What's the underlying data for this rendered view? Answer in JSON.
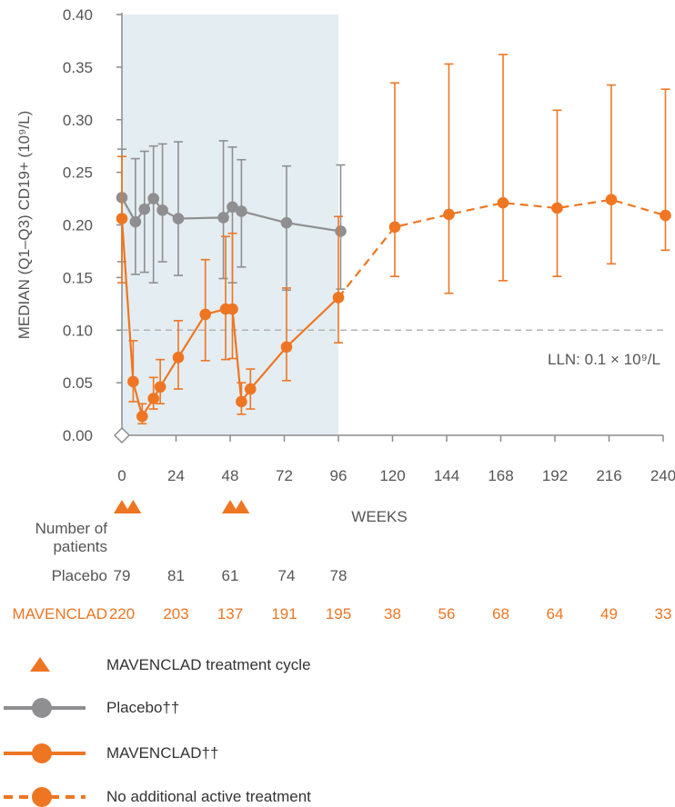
{
  "colors": {
    "mavenclad": "#ee7623",
    "placebo": "#8f8f92",
    "shade": "#e4edf1",
    "axis": "#8c8c8c",
    "lln": "#b4b4b4",
    "text": "#555555"
  },
  "chart_data": {
    "type": "line",
    "ylabel": "MEDIAN (Q1–Q3) CD19+ (10⁹/L)",
    "xlabel": "WEEKS",
    "xlim": [
      0,
      240
    ],
    "ylim": [
      0,
      0.4
    ],
    "x_ticks": [
      0,
      24,
      48,
      72,
      96,
      120,
      144,
      168,
      192,
      216,
      240
    ],
    "y_ticks": [
      "0.00",
      "0.05",
      "0.10",
      "0.15",
      "0.20",
      "0.25",
      "0.30",
      "0.35",
      "0.40"
    ],
    "shaded_region_x": [
      0,
      96
    ],
    "reference_line": {
      "y": 0.1,
      "label": "LLN: 0.1 × 10⁹/L"
    },
    "treatment_cycle_weeks": [
      0,
      5,
      48,
      53
    ],
    "series": [
      {
        "name": "Placebo††",
        "style": "solid",
        "points": [
          {
            "x": 0,
            "y": 0.226,
            "q1": 0.165,
            "q3": 0.272
          },
          {
            "x": 6,
            "y": 0.203,
            "q1": 0.153,
            "q3": 0.263
          },
          {
            "x": 10,
            "y": 0.215,
            "q1": 0.155,
            "q3": 0.27
          },
          {
            "x": 14,
            "y": 0.225,
            "q1": 0.145,
            "q3": 0.275
          },
          {
            "x": 18,
            "y": 0.214,
            "q1": 0.165,
            "q3": 0.277
          },
          {
            "x": 25,
            "y": 0.206,
            "q1": 0.152,
            "q3": 0.279
          },
          {
            "x": 45,
            "y": 0.207,
            "q1": 0.149,
            "q3": 0.28
          },
          {
            "x": 49,
            "y": 0.217,
            "q1": 0.145,
            "q3": 0.274
          },
          {
            "x": 53,
            "y": 0.213,
            "q1": 0.16,
            "q3": 0.262
          },
          {
            "x": 73,
            "y": 0.202,
            "q1": 0.138,
            "q3": 0.256
          },
          {
            "x": 97,
            "y": 0.194,
            "q1": 0.139,
            "q3": 0.257
          }
        ]
      },
      {
        "name": "MAVENCLAD††",
        "style": "solid",
        "points": [
          {
            "x": 0,
            "y": 0.206,
            "q1": 0.145,
            "q3": 0.265
          },
          {
            "x": 5,
            "y": 0.051,
            "q1": 0.032,
            "q3": 0.09
          },
          {
            "x": 9,
            "y": 0.018,
            "q1": 0.011,
            "q3": 0.03
          },
          {
            "x": 14,
            "y": 0.035,
            "q1": 0.025,
            "q3": 0.055
          },
          {
            "x": 17,
            "y": 0.046,
            "q1": 0.03,
            "q3": 0.072
          },
          {
            "x": 25,
            "y": 0.074,
            "q1": 0.044,
            "q3": 0.109
          },
          {
            "x": 37,
            "y": 0.115,
            "q1": 0.071,
            "q3": 0.167
          },
          {
            "x": 46,
            "y": 0.12,
            "q1": 0.072,
            "q3": 0.189
          },
          {
            "x": 49,
            "y": 0.12,
            "q1": 0.073,
            "q3": 0.192
          },
          {
            "x": 53,
            "y": 0.032,
            "q1": 0.02,
            "q3": 0.05
          },
          {
            "x": 57,
            "y": 0.044,
            "q1": 0.025,
            "q3": 0.063
          },
          {
            "x": 73,
            "y": 0.084,
            "q1": 0.052,
            "q3": 0.14
          },
          {
            "x": 96,
            "y": 0.131,
            "q1": 0.088,
            "q3": 0.208
          }
        ]
      },
      {
        "name": "No additional active treatment",
        "style": "dashed",
        "points": [
          {
            "x": 96,
            "y": 0.131
          },
          {
            "x": 121,
            "y": 0.198,
            "q1": 0.151,
            "q3": 0.335
          },
          {
            "x": 145,
            "y": 0.21,
            "q1": 0.135,
            "q3": 0.353
          },
          {
            "x": 169,
            "y": 0.221,
            "q1": 0.147,
            "q3": 0.362
          },
          {
            "x": 193,
            "y": 0.216,
            "q1": 0.151,
            "q3": 0.309
          },
          {
            "x": 217,
            "y": 0.224,
            "q1": 0.163,
            "q3": 0.333
          },
          {
            "x": 241,
            "y": 0.209,
            "q1": 0.176,
            "q3": 0.329
          }
        ]
      }
    ]
  },
  "patients": {
    "header_line1": "Number of",
    "header_line2": "patients",
    "placebo_label": "Placebo",
    "placebo_counts": [
      {
        "x": 0,
        "n": "79"
      },
      {
        "x": 24,
        "n": "81"
      },
      {
        "x": 48,
        "n": "61"
      },
      {
        "x": 73,
        "n": "74"
      },
      {
        "x": 96,
        "n": "78"
      }
    ],
    "mavenclad_label": "MAVENCLAD",
    "mavenclad_counts": [
      {
        "x": 0,
        "n": "220"
      },
      {
        "x": 24,
        "n": "203"
      },
      {
        "x": 48,
        "n": "137"
      },
      {
        "x": 72,
        "n": "191"
      },
      {
        "x": 96,
        "n": "195"
      },
      {
        "x": 120,
        "n": "38"
      },
      {
        "x": 144,
        "n": "56"
      },
      {
        "x": 168,
        "n": "68"
      },
      {
        "x": 192,
        "n": "64"
      },
      {
        "x": 216,
        "n": "49"
      },
      {
        "x": 240,
        "n": "33"
      }
    ]
  },
  "legend": [
    {
      "symbol": "triangle",
      "label": "MAVENCLAD treatment cycle"
    },
    {
      "symbol": "placebo-line",
      "label": "Placebo††"
    },
    {
      "symbol": "mavenclad-line",
      "label": "MAVENCLAD††"
    },
    {
      "symbol": "dashed-line",
      "label": "No additional active treatment"
    }
  ]
}
